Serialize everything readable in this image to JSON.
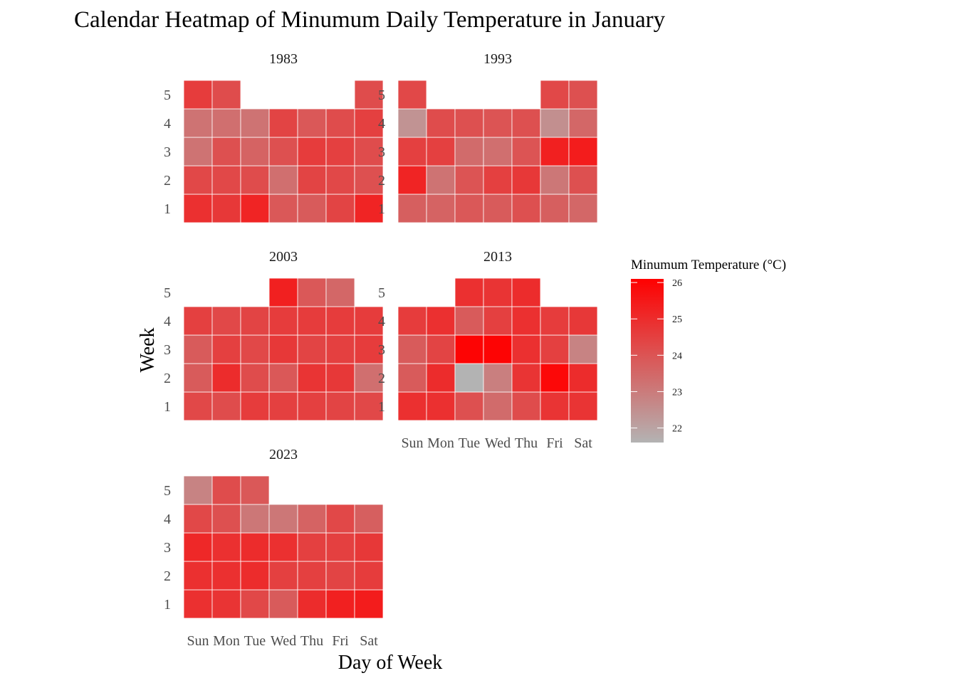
{
  "chart_data": {
    "type": "heatmap",
    "title": "Calendar Heatmap of Minumum Daily Temperature in January",
    "xlabel": "Day of Week",
    "ylabel": "Week",
    "x_categories": [
      "Sun",
      "Mon",
      "Tue",
      "Wed",
      "Thu",
      "Fri",
      "Sat"
    ],
    "y_categories": [
      "1",
      "2",
      "3",
      "4",
      "5"
    ],
    "legend": {
      "title": "Minumum Temperature (°C)",
      "ticks": [
        22,
        23,
        24,
        25,
        26
      ],
      "range": [
        21.6,
        26.1
      ],
      "low_color": "#b3b3b3",
      "high_color": "#ff0000",
      "placement": "right"
    },
    "panels": [
      {
        "label": "1983",
        "weeks": [
          [
            24.9,
            24.7,
            25.2,
            23.9,
            23.8,
            24.4,
            25.2
          ],
          [
            24.3,
            24.3,
            24.2,
            23.3,
            24.4,
            24.3,
            24.1
          ],
          [
            23.2,
            24.1,
            23.6,
            24.1,
            24.6,
            24.5,
            24.2
          ],
          [
            23.2,
            23.3,
            23.2,
            24.4,
            23.9,
            24.2,
            24.5
          ],
          [
            24.6,
            24.2,
            null,
            null,
            null,
            null,
            24.2
          ]
        ]
      },
      {
        "label": "1993",
        "weeks": [
          [
            23.7,
            23.6,
            23.9,
            23.8,
            24.1,
            23.7,
            23.5
          ],
          [
            25.2,
            23.2,
            24.0,
            24.5,
            24.7,
            23.1,
            24.1
          ],
          [
            24.5,
            24.5,
            23.4,
            23.3,
            24.0,
            25.3,
            25.4
          ],
          [
            22.4,
            24.2,
            24.1,
            24.0,
            24.1,
            22.5,
            23.5
          ],
          [
            24.3,
            null,
            null,
            null,
            null,
            24.3,
            24.1
          ]
        ]
      },
      {
        "label": "2003",
        "weeks": [
          [
            24.3,
            24.2,
            24.6,
            24.5,
            24.5,
            24.4,
            24.3
          ],
          [
            23.8,
            25.0,
            24.2,
            23.9,
            24.8,
            24.7,
            23.3
          ],
          [
            23.8,
            24.5,
            24.3,
            24.7,
            24.4,
            24.5,
            24.6
          ],
          [
            24.5,
            24.3,
            24.4,
            24.6,
            24.6,
            24.6,
            24.6
          ],
          [
            null,
            null,
            null,
            25.3,
            23.9,
            23.5,
            null
          ]
        ]
      },
      {
        "label": "2013",
        "weeks": [
          [
            24.9,
            24.9,
            24.1,
            23.4,
            24.2,
            24.8,
            24.8
          ],
          [
            23.8,
            25.0,
            21.6,
            22.9,
            24.8,
            25.9,
            25.0
          ],
          [
            23.8,
            24.4,
            26.0,
            26.0,
            24.9,
            24.5,
            22.8
          ],
          [
            24.6,
            24.9,
            23.8,
            24.5,
            24.9,
            24.6,
            24.7
          ],
          [
            null,
            null,
            24.9,
            24.8,
            25.0,
            null,
            null
          ]
        ]
      },
      {
        "label": "2023",
        "weeks": [
          [
            24.9,
            24.8,
            24.3,
            23.8,
            25.0,
            25.3,
            25.4
          ],
          [
            24.9,
            24.9,
            25.0,
            24.5,
            24.5,
            24.4,
            24.6
          ],
          [
            25.1,
            24.9,
            25.0,
            24.9,
            24.5,
            24.5,
            24.7
          ],
          [
            24.3,
            24.1,
            23.1,
            23.1,
            23.6,
            24.3,
            23.7
          ],
          [
            22.8,
            24.2,
            23.9,
            null,
            null,
            null,
            null
          ]
        ]
      }
    ]
  }
}
